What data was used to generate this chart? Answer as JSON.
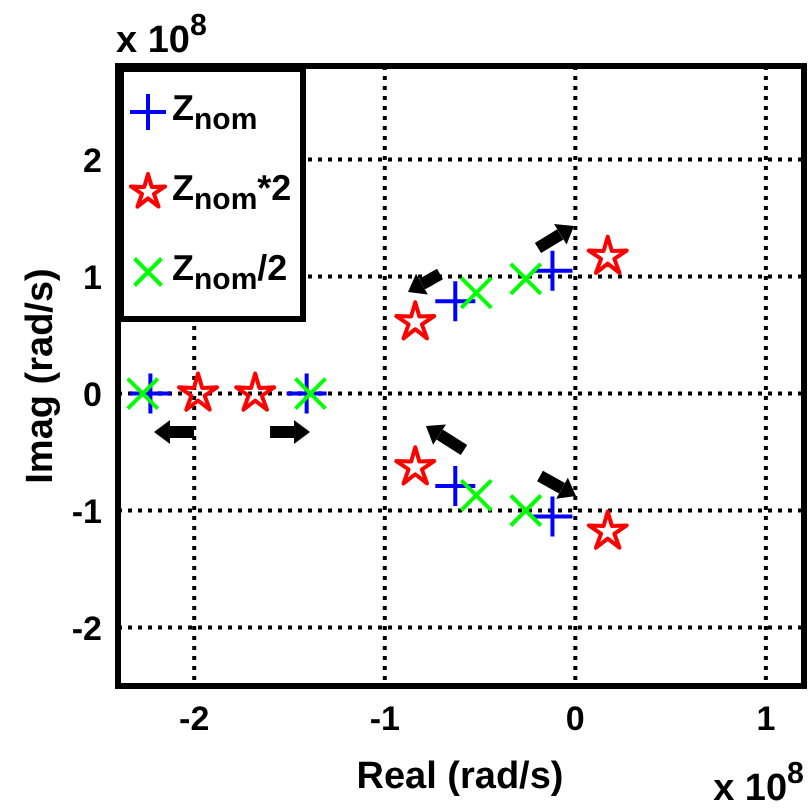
{
  "chart_data": {
    "type": "scatter",
    "xlabel": "Real (rad/s)",
    "ylabel": "Imag (rad/s)",
    "annotations": [
      "x 10$^{8}$",
      "x 10$^{8}$"
    ],
    "series": [
      {
        "name": "Z$_{nom}$",
        "color": "#0000ff",
        "marker": "plus",
        "x": [
          -2.23,
          -1.41,
          -0.63,
          -0.12,
          -0.63,
          -0.12
        ],
        "values": [
          0,
          0,
          0.79,
          1.05,
          -0.79,
          -1.05
        ]
      },
      {
        "name": "Z$_{nom}$*2",
        "color": "#ff0000",
        "marker": "star",
        "x": [
          -1.98,
          -1.68,
          -0.84,
          0.17,
          -0.84,
          0.17
        ],
        "values": [
          0,
          0,
          0.61,
          1.17,
          -0.63,
          -1.18
        ]
      },
      {
        "name": "Z$_{nom}$/2",
        "color": "#00ff00",
        "marker": "cross",
        "x": [
          -2.27,
          -1.39,
          -0.52,
          -0.26,
          -0.52,
          -0.26
        ],
        "values": [
          0,
          0,
          0.86,
          0.98,
          -0.87,
          -1.0
        ]
      }
    ],
    "xlim": [
      -2.4,
      1.2
    ],
    "xticks": [
      -2,
      -1,
      0,
      1
    ],
    "ylim": [
      -2.5,
      2.8
    ],
    "yticks": [
      -2,
      -1,
      0,
      1,
      2
    ],
    "grid": true,
    "legend": "top left"
  }
}
